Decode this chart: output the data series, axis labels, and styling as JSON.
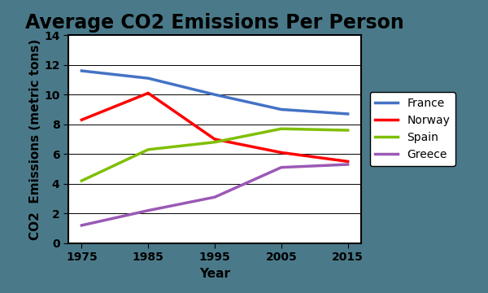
{
  "title": "Average CO2 Emissions Per Person",
  "xlabel": "Year",
  "ylabel": "CO2  Emissions (metric tons)",
  "years": [
    1975,
    1985,
    1995,
    2005,
    2015
  ],
  "series": {
    "France": {
      "values": [
        11.6,
        11.1,
        10.0,
        9.0,
        8.7
      ],
      "color": "#4472C4",
      "linewidth": 2.5
    },
    "Norway": {
      "values": [
        8.3,
        10.1,
        7.0,
        6.1,
        5.5
      ],
      "color": "#FF0000",
      "linewidth": 2.5
    },
    "Spain": {
      "values": [
        4.2,
        6.3,
        6.8,
        7.7,
        7.6
      ],
      "color": "#7FBF00",
      "linewidth": 2.5
    },
    "Greece": {
      "values": [
        1.2,
        2.2,
        3.1,
        5.1,
        5.3
      ],
      "color": "#9B59B6",
      "linewidth": 2.5
    }
  },
  "ylim": [
    0,
    14
  ],
  "yticks": [
    0,
    2,
    4,
    6,
    8,
    10,
    12,
    14
  ],
  "xticks": [
    1975,
    1985,
    1995,
    2005,
    2015
  ],
  "background_color": "#4A7A8A",
  "plot_bg_color": "#FFFFFF",
  "title_fontsize": 17,
  "axis_label_fontsize": 11,
  "tick_fontsize": 10,
  "legend_fontsize": 10
}
